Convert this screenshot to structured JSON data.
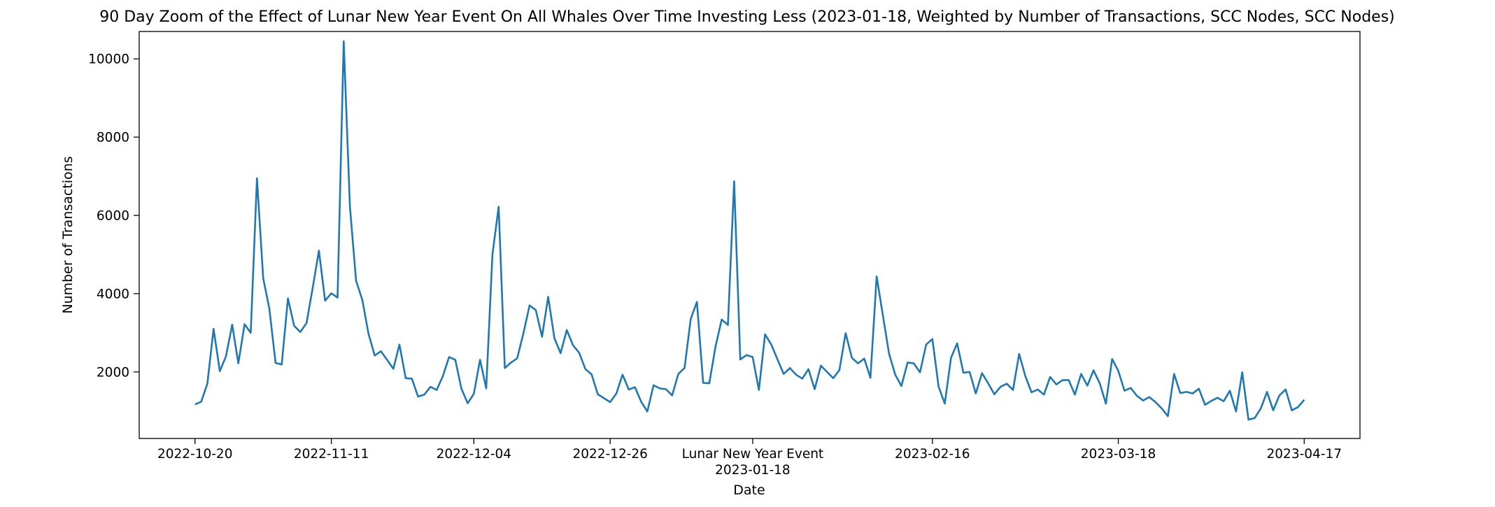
{
  "chart_data": {
    "type": "line",
    "title": "90 Day Zoom of the Effect of Lunar New Year Event On All Whales Over Time Investing Less (2023-01-18, Weighted by Number of Transactions, SCC Nodes, SCC Nodes)",
    "xlabel": "Date",
    "ylabel": "Number of Transactions",
    "x_start": "2022-10-20",
    "x_end": "2023-04-17",
    "xlim": [
      "2022-10-11",
      "2023-04-26"
    ],
    "ylim": [
      300,
      10700
    ],
    "grid": false,
    "color": "#1f77b4",
    "x_ticks": [
      "2022-10-20",
      "2022-11-11",
      "2022-12-04",
      "2022-12-26",
      "2023-01-18",
      "2023-02-16",
      "2023-03-18",
      "2023-04-17"
    ],
    "y_ticks": [
      2000,
      4000,
      6000,
      8000,
      10000
    ],
    "event_annotation": {
      "label": "Lunar New Year Event",
      "date": "2023-01-18"
    },
    "values": [
      1170,
      1240,
      1700,
      3100,
      2020,
      2400,
      3210,
      2220,
      3220,
      3000,
      6950,
      4400,
      3620,
      2230,
      2190,
      3880,
      3180,
      3020,
      3250,
      4150,
      5100,
      3820,
      4010,
      3900,
      10450,
      6220,
      4330,
      3840,
      2980,
      2420,
      2530,
      2310,
      2080,
      2700,
      1840,
      1830,
      1370,
      1420,
      1620,
      1540,
      1890,
      2380,
      2310,
      1570,
      1200,
      1440,
      2310,
      1580,
      5000,
      6220,
      2100,
      2240,
      2350,
      2990,
      3700,
      3580,
      2900,
      3920,
      2860,
      2480,
      3070,
      2680,
      2490,
      2070,
      1940,
      1430,
      1330,
      1230,
      1450,
      1930,
      1550,
      1610,
      1240,
      990,
      1660,
      1580,
      1560,
      1400,
      1950,
      2100,
      3360,
      3790,
      1720,
      1710,
      2650,
      3340,
      3200,
      6870,
      2320,
      2430,
      2380,
      1540,
      2960,
      2700,
      2320,
      1950,
      2100,
      1930,
      1830,
      2070,
      1560,
      2160,
      2000,
      1840,
      2050,
      2990,
      2360,
      2220,
      2340,
      1850,
      4440,
      3460,
      2470,
      1930,
      1640,
      2240,
      2220,
      1990,
      2700,
      2840,
      1620,
      1190,
      2360,
      2730,
      1980,
      2000,
      1450,
      1970,
      1710,
      1430,
      1620,
      1700,
      1540,
      2460,
      1890,
      1480,
      1550,
      1420,
      1870,
      1680,
      1790,
      1790,
      1420,
      1950,
      1650,
      2040,
      1710,
      1190,
      2330,
      2030,
      1520,
      1590,
      1390,
      1270,
      1360,
      1230,
      1070,
      870,
      1950,
      1460,
      1490,
      1450,
      1570,
      1160,
      1260,
      1340,
      1250,
      1520,
      990,
      1990,
      780,
      820,
      1070,
      1490,
      1020,
      1400,
      1550,
      1020,
      1100,
      1290
    ]
  }
}
